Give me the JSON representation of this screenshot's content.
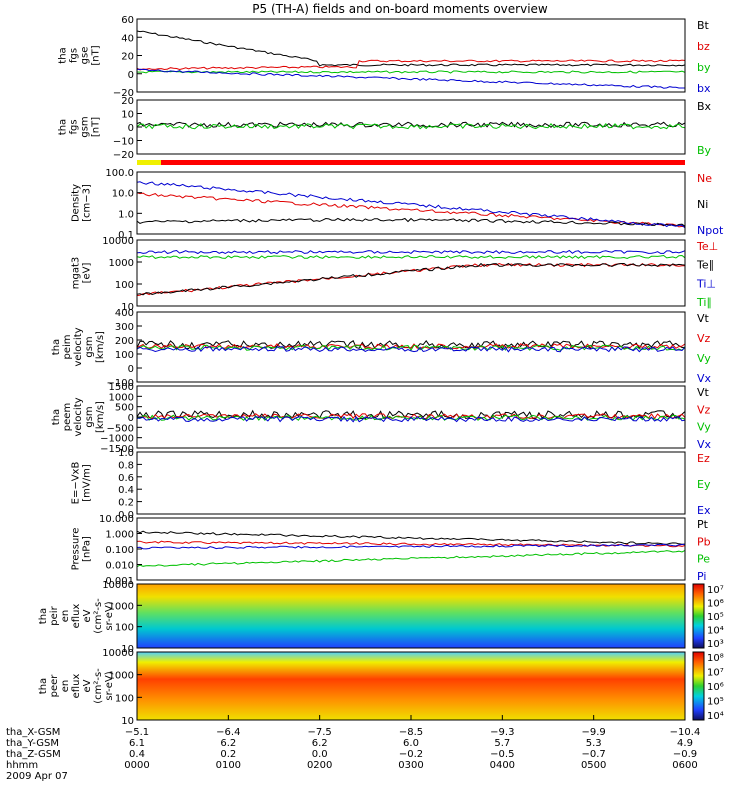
{
  "chart_data": {
    "type": "line",
    "title": "P5 (TH-A) fields and on-board moments overview",
    "date": "2009 Apr 07",
    "panels": [
      {
        "id": "fgs-gse",
        "ylabel": [
          "tha",
          "fgs",
          "gse",
          "[nT]"
        ],
        "yticks": [
          "60",
          "40",
          "20",
          "0",
          "−20"
        ],
        "legend": [
          {
            "name": "Bt",
            "color": "#000000"
          },
          {
            "name": "bz",
            "color": "#e00000"
          },
          {
            "name": "by",
            "color": "#00c000"
          },
          {
            "name": "bx",
            "color": "#0000d0"
          }
        ]
      },
      {
        "id": "fgs-gsm",
        "ylabel": [
          "tha",
          "fgs",
          "gsm",
          "[nT]"
        ],
        "yticks": [
          "20",
          "10",
          "0",
          "−10",
          "−20"
        ],
        "legend": [
          {
            "name": "Bx",
            "color": "#000000"
          },
          {
            "name": "By",
            "color": "#00c000"
          }
        ]
      },
      {
        "id": "density",
        "ylabel": [
          "Density",
          "[cm−3]"
        ],
        "yticks": [
          "100.0",
          "10.0",
          "1.0",
          "0.1"
        ],
        "legend": [
          {
            "name": "Ne",
            "color": "#e00000"
          },
          {
            "name": "Ni",
            "color": "#000000"
          },
          {
            "name": "Npot",
            "color": "#0000d0"
          }
        ]
      },
      {
        "id": "temps",
        "ylabel": [
          "mgat3",
          "[eV]"
        ],
        "yticks": [
          "10000",
          "1000",
          "100",
          "10"
        ],
        "legend": [
          {
            "name": "Te⊥",
            "color": "#e00000"
          },
          {
            "name": "Te∥",
            "color": "#000000"
          },
          {
            "name": "Ti⊥",
            "color": "#0000d0"
          },
          {
            "name": "Ti∥",
            "color": "#00c000"
          }
        ]
      },
      {
        "id": "peim-vel",
        "ylabel": [
          "tha",
          "peim",
          "velocity",
          "gsm",
          "[km/s]"
        ],
        "yticks": [
          "400",
          "300",
          "200",
          "100",
          "0",
          "−100"
        ],
        "legend": [
          {
            "name": "Vt",
            "color": "#000000"
          },
          {
            "name": "Vz",
            "color": "#e00000"
          },
          {
            "name": "Vy",
            "color": "#00c000"
          },
          {
            "name": "Vx",
            "color": "#0000d0"
          }
        ]
      },
      {
        "id": "peem-vel",
        "ylabel": [
          "tha",
          "peem",
          "velocity",
          "gsm",
          "[km/s]"
        ],
        "yticks": [
          "1500",
          "1000",
          "500",
          "0",
          "−500",
          "−1000",
          "−1500"
        ],
        "legend": [
          {
            "name": "Vt",
            "color": "#000000"
          },
          {
            "name": "Vz",
            "color": "#e00000"
          },
          {
            "name": "Vy",
            "color": "#00c000"
          },
          {
            "name": "Vx",
            "color": "#0000d0"
          }
        ]
      },
      {
        "id": "efield",
        "ylabel": [
          "E=−VxB",
          "[mV/m]"
        ],
        "yticks": [
          "1.0",
          "0.8",
          "0.6",
          "0.4",
          "0.2",
          "0.0"
        ],
        "legend": [
          {
            "name": "Ez",
            "color": "#e00000"
          },
          {
            "name": "Ey",
            "color": "#00c000"
          },
          {
            "name": "Ex",
            "color": "#0000d0"
          }
        ]
      },
      {
        "id": "pressure",
        "ylabel": [
          "Pressure",
          "[nPa]"
        ],
        "yticks": [
          "10.000",
          "1.000",
          "0.100",
          "0.010",
          "0.001"
        ],
        "legend": [
          {
            "name": "Pt",
            "color": "#000000"
          },
          {
            "name": "Pb",
            "color": "#e00000"
          },
          {
            "name": "Pe",
            "color": "#00c000"
          },
          {
            "name": "Pi",
            "color": "#0000d0"
          }
        ]
      },
      {
        "id": "peir",
        "ylabel": [
          "tha",
          "peir",
          "en",
          "eflux",
          "eV",
          "(cm²-s-",
          "sr-eV)"
        ],
        "yticks": [
          "10000",
          "1000",
          "100",
          "10"
        ],
        "colorbar": [
          "10⁷",
          "10⁶",
          "10⁵",
          "10⁴",
          "10³"
        ]
      },
      {
        "id": "peer",
        "ylabel": [
          "tha",
          "peer",
          "en",
          "eflux",
          "eV",
          "(cm²-s-",
          "sr-eV)"
        ],
        "yticks": [
          "10000",
          "1000",
          "100",
          "10"
        ],
        "colorbar": [
          "10⁸",
          "10⁷",
          "10⁶",
          "10⁵",
          "10⁴"
        ]
      }
    ],
    "x_axis": {
      "rows": [
        {
          "label": "tha_X-GSM",
          "values": [
            "−5.1",
            "−6.4",
            "−7.5",
            "−8.5",
            "−9.3",
            "−9.9",
            "−10.4"
          ]
        },
        {
          "label": "tha_Y-GSM",
          "values": [
            "6.1",
            "6.2",
            "6.2",
            "6.0",
            "5.7",
            "5.3",
            "4.9"
          ]
        },
        {
          "label": "tha_Z-GSM",
          "values": [
            "0.4",
            "0.2",
            "0.0",
            "−0.2",
            "−0.5",
            "−0.7",
            "−0.9"
          ]
        },
        {
          "label": "hhmm",
          "values": [
            "0000",
            "0100",
            "0200",
            "0300",
            "0400",
            "0500",
            "0600"
          ]
        }
      ]
    }
  }
}
